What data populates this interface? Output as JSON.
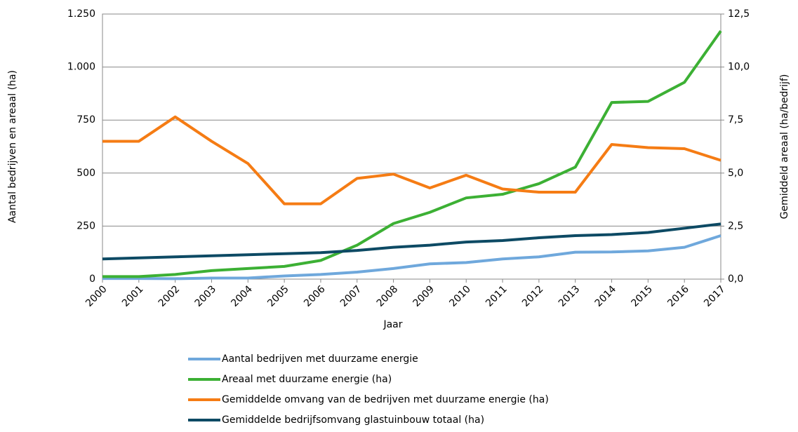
{
  "chart_data": {
    "type": "line",
    "categories": [
      "2000",
      "2001",
      "2002",
      "2003",
      "2004",
      "2005",
      "2006",
      "2007",
      "2008",
      "2009",
      "2010",
      "2011",
      "2012",
      "2013",
      "2014",
      "2015",
      "2016",
      "2017"
    ],
    "xlabel": "Jaar",
    "ylabel": "Aantal bedrijven en areaal (ha)",
    "y2label": "Gemiddeld areaal (ha/bedrijf)",
    "ylim": [
      0,
      1250
    ],
    "yticks": [
      0,
      250,
      500,
      750,
      {
        "value": 1000,
        "label": "1.000"
      },
      {
        "value": 1250,
        "label": "1.250"
      }
    ],
    "y2lim": [
      0,
      12.5
    ],
    "y2ticks": [
      {
        "value": 0,
        "label": "0,0"
      },
      {
        "value": 2.5,
        "label": "2,5"
      },
      {
        "value": 5,
        "label": "5,0"
      },
      {
        "value": 7.5,
        "label": "7,5"
      },
      {
        "value": 10,
        "label": "10,0"
      },
      {
        "value": 12.5,
        "label": "12,5"
      }
    ],
    "grid": true,
    "legend": "bottom",
    "series": [
      {
        "name": "Aantal bedrijven met duurzame energie",
        "color": "#6fa8dc",
        "values": [
          3,
          3,
          2,
          5,
          5,
          15,
          22,
          33,
          50,
          72,
          78,
          95,
          105,
          127,
          128,
          133,
          150,
          205
        ]
      },
      {
        "name": "Areaal met duurzame energie (ha)",
        "color": "#3cb034",
        "values": [
          12,
          12,
          22,
          40,
          50,
          60,
          88,
          160,
          262,
          315,
          383,
          400,
          450,
          528,
          833,
          838,
          928,
          1170
        ]
      },
      {
        "name": "Gemiddelde omvang van de bedrijven met duurzame energie (ha)",
        "color": "#f57c14",
        "axis": "y2",
        "values": [
          6.5,
          6.5,
          7.65,
          6.5,
          5.45,
          3.55,
          3.55,
          4.75,
          4.95,
          4.3,
          4.9,
          4.25,
          4.1,
          4.1,
          6.35,
          6.2,
          6.15,
          5.6
        ]
      },
      {
        "name": "Gemiddelde bedrijfsomvang glastuinbouw totaal (ha)",
        "color": "#0d4a64",
        "axis": "y2",
        "values": [
          0.95,
          1.0,
          1.05,
          1.1,
          1.15,
          1.2,
          1.25,
          1.35,
          1.5,
          1.6,
          1.75,
          1.82,
          1.95,
          2.05,
          2.1,
          2.2,
          2.4,
          2.6
        ]
      }
    ]
  }
}
